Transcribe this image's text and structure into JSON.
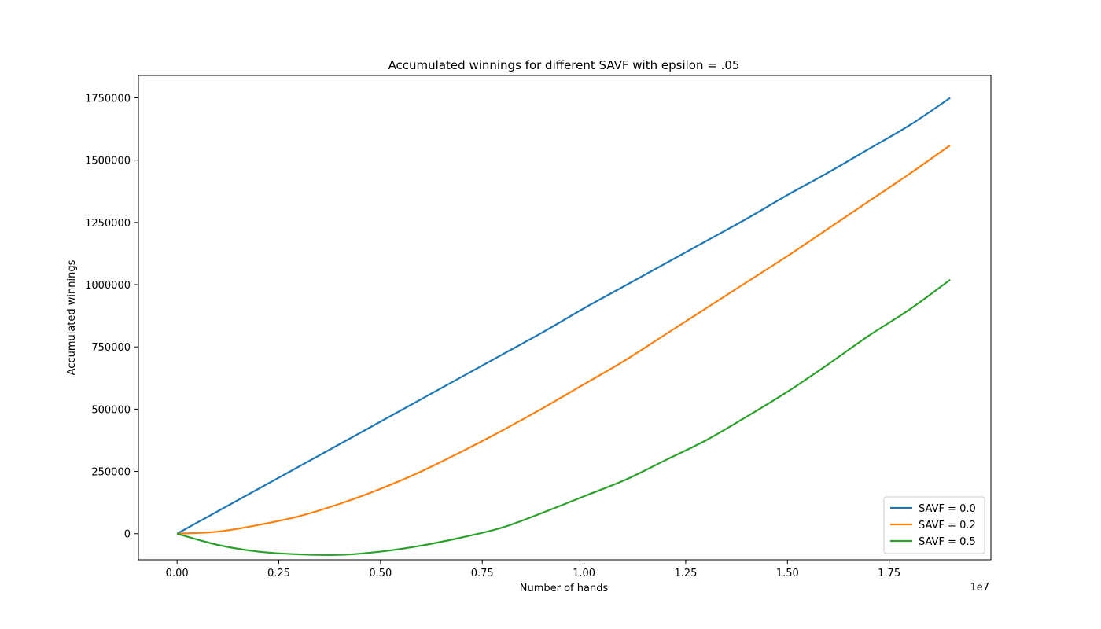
{
  "chart_data": {
    "type": "line",
    "title": "Accumulated winnings for different SAVF with epsilon = .05",
    "xlabel": "Number of hands",
    "ylabel": "Accumulated winnings",
    "x_offset_text": "1e7",
    "x_scale": 10000000,
    "xlim": [
      -0.095,
      2.0
    ],
    "ylim": [
      -105000,
      1840000
    ],
    "xticks": [
      0.0,
      0.25,
      0.5,
      0.75,
      1.0,
      1.25,
      1.5,
      1.75
    ],
    "xtick_labels": [
      "0.00",
      "0.25",
      "0.50",
      "0.75",
      "1.00",
      "1.25",
      "1.50",
      "1.75"
    ],
    "yticks": [
      0,
      250000,
      500000,
      750000,
      1000000,
      1250000,
      1500000,
      1750000
    ],
    "ytick_labels": [
      "0",
      "250000",
      "500000",
      "750000",
      "1000000",
      "1250000",
      "1500000",
      "1750000"
    ],
    "grid": false,
    "legend_position": "lower right",
    "x": [
      0.0,
      0.1,
      0.2,
      0.3,
      0.4,
      0.5,
      0.6,
      0.7,
      0.8,
      0.9,
      1.0,
      1.1,
      1.2,
      1.3,
      1.4,
      1.5,
      1.6,
      1.7,
      1.8,
      1.9
    ],
    "series": [
      {
        "name": "SAVF = 0.0",
        "color": "#1f77b4",
        "values": [
          0,
          90000,
          180000,
          270000,
          360000,
          450000,
          540000,
          630000,
          720000,
          810000,
          905000,
          995000,
          1085000,
          1175000,
          1265000,
          1360000,
          1450000,
          1545000,
          1640000,
          1750000
        ]
      },
      {
        "name": "SAVF = 0.2",
        "color": "#ff7f0e",
        "values": [
          0,
          8000,
          35000,
          70000,
          120000,
          180000,
          250000,
          330000,
          415000,
          505000,
          600000,
          695000,
          800000,
          905000,
          1010000,
          1115000,
          1225000,
          1335000,
          1445000,
          1560000
        ]
      },
      {
        "name": "SAVF = 0.5",
        "color": "#2ca02c",
        "values": [
          0,
          -45000,
          -72000,
          -83000,
          -85000,
          -72000,
          -48000,
          -15000,
          25000,
          85000,
          150000,
          215000,
          295000,
          375000,
          470000,
          570000,
          680000,
          795000,
          900000,
          1020000
        ]
      }
    ]
  }
}
